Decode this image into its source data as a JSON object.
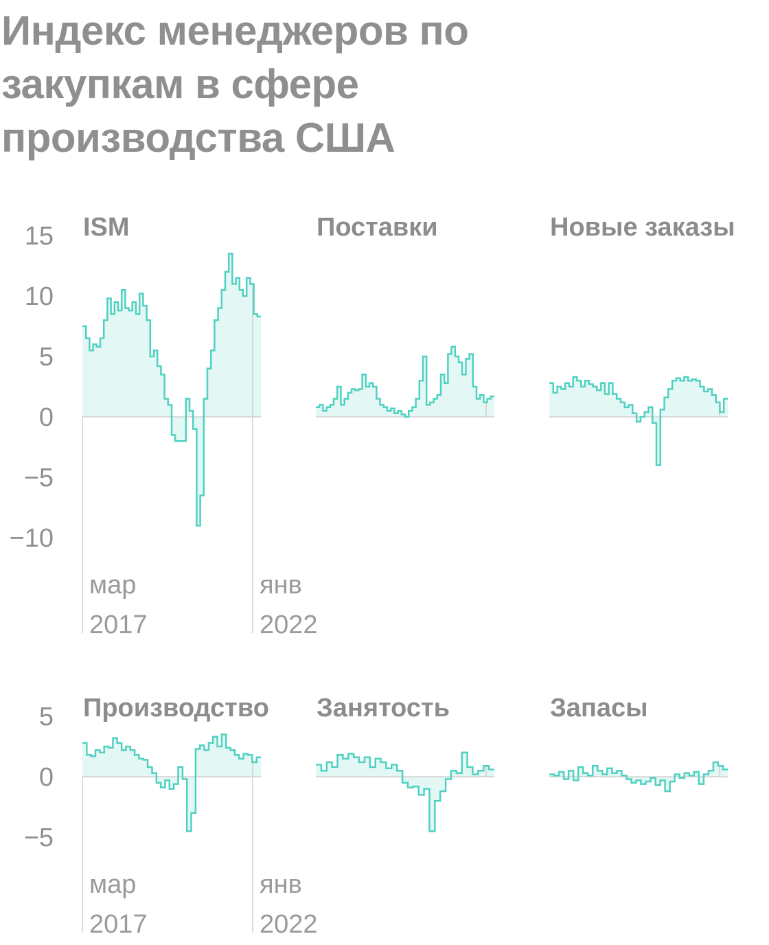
{
  "title": "Индекс менеджеров по закупкам в сфере производства США",
  "colors": {
    "line": "#4fd1c1",
    "fill": "#e3f7f4",
    "axis": "#d0d0d0",
    "text": "#8f8f8f"
  },
  "x_labels": [
    {
      "month": "мар",
      "year": "2017"
    },
    {
      "month": "янв",
      "year": "2022"
    }
  ],
  "chart_data": [
    {
      "type": "area",
      "layout": "small-multiples",
      "yticks": [
        15,
        10,
        5,
        0,
        -5,
        -10
      ],
      "ylim": [
        -10,
        15
      ],
      "panels": [
        {
          "name": "ISM",
          "values": [
            7.5,
            6.5,
            5.5,
            6,
            5.8,
            6.5,
            8,
            9.8,
            8.5,
            9.5,
            8.8,
            10.5,
            9,
            8.8,
            9.5,
            8.5,
            10.2,
            9.2,
            8,
            5,
            5.5,
            4.2,
            3.5,
            1.5,
            1,
            -1.5,
            -2,
            -2,
            -2,
            1.5,
            0.5,
            -1,
            -9,
            -6.5,
            1.5,
            4,
            5.5,
            8,
            9,
            10.5,
            12,
            13.5,
            11,
            11.5,
            10.5,
            10,
            11.5,
            11,
            8.5,
            8.3
          ]
        },
        {
          "name": "Поставки",
          "values": [
            0.8,
            1,
            0.5,
            0.8,
            1,
            1.5,
            2.5,
            1,
            1.5,
            2,
            2.3,
            2.2,
            2.3,
            3.5,
            2.5,
            2.8,
            2.5,
            1.5,
            1,
            0.8,
            0.5,
            0.7,
            0.3,
            0.5,
            0.2,
            0,
            0.5,
            0.8,
            1.5,
            3,
            5,
            1,
            1.2,
            1.5,
            1.8,
            3.5,
            2.8,
            5.2,
            5.8,
            5,
            4.5,
            3.5,
            4.8,
            5.2,
            2.5,
            1.5,
            1.8,
            1.2,
            1.5,
            1.7
          ]
        },
        {
          "name": "Новые заказы",
          "values": [
            2.8,
            2,
            2.5,
            2.3,
            2.8,
            2.5,
            3.3,
            3,
            2.5,
            3,
            2.7,
            2.5,
            2.2,
            2.8,
            1.9,
            2.8,
            1.9,
            1.5,
            1.2,
            0.8,
            1,
            0.3,
            -0.4,
            0,
            0.4,
            0.8,
            -0.5,
            -4,
            0.6,
            1.6,
            2.3,
            3,
            3.2,
            3,
            3.3,
            3,
            3.1,
            3,
            2.5,
            2.1,
            2.3,
            1.8,
            1.2,
            0.4,
            1.5
          ]
        }
      ]
    },
    {
      "type": "area",
      "layout": "small-multiples",
      "yticks": [
        5,
        0,
        -5
      ],
      "ylim": [
        -5,
        5
      ],
      "panels": [
        {
          "name": "Производство",
          "values": [
            2.8,
            1.8,
            1.7,
            2.2,
            2,
            2.5,
            2.4,
            3.2,
            2.8,
            2.2,
            2.5,
            2.2,
            1.8,
            1.5,
            1.4,
            0.8,
            0.3,
            -0.5,
            -0.9,
            -0.3,
            -1,
            -0.6,
            0.8,
            -0.2,
            -4.5,
            -3,
            2.3,
            2.6,
            2.2,
            2.8,
            3.3,
            2.5,
            3.5,
            2.4,
            2.2,
            1.8,
            1.5,
            1.9,
            1.8,
            1.2,
            1.6
          ]
        },
        {
          "name": "Занятость",
          "values": [
            1,
            0.5,
            1.2,
            0.8,
            1.8,
            1.5,
            1.9,
            1.6,
            1.2,
            1.6,
            0.8,
            1.5,
            1.2,
            0.7,
            1,
            0.5,
            -0.5,
            -0.9,
            -0.8,
            -1.5,
            -1,
            -4.5,
            -2,
            -1.2,
            -0.2,
            0.5,
            0.3,
            2,
            0.8,
            0.2,
            0.5,
            0.9,
            0.6
          ]
        },
        {
          "name": "Запасы",
          "values": [
            0.2,
            0.1,
            0.4,
            -0.2,
            0.5,
            -0.3,
            0.8,
            0.3,
            0.1,
            0.9,
            0.5,
            0.2,
            0.7,
            0.3,
            0.5,
            0.1,
            -0.2,
            -0.5,
            -0.3,
            -0.6,
            -0.4,
            -0.1,
            -0.7,
            -0.3,
            -1.2,
            -0.4,
            0.2,
            -0.1,
            0.3,
            0.1,
            0.4,
            -0.6,
            0.2,
            0.5,
            1.2,
            0.9,
            0.6
          ]
        }
      ]
    }
  ]
}
